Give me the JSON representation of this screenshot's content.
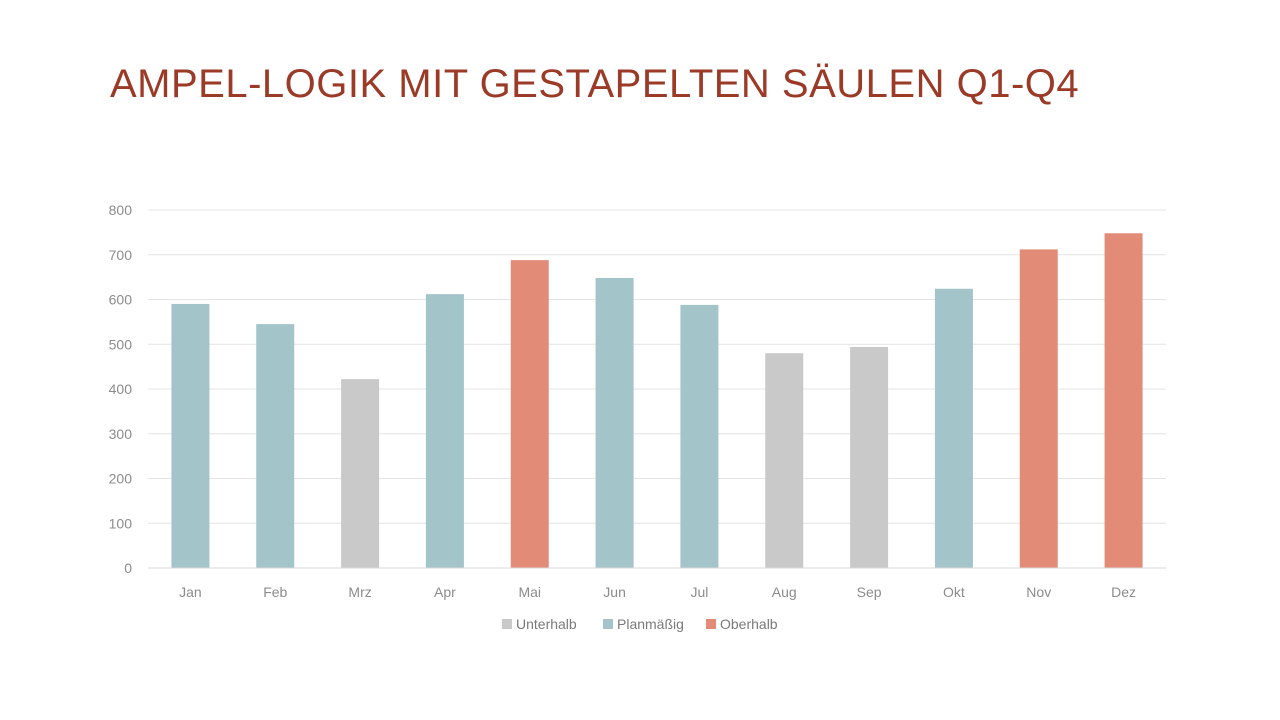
{
  "title": "AMPEL-LOGIK MIT GESTAPELTEN SÄULEN Q1-Q4",
  "chart_data": {
    "type": "bar",
    "stacked": true,
    "categories": [
      "Jan",
      "Feb",
      "Mrz",
      "Apr",
      "Mai",
      "Jun",
      "Jul",
      "Aug",
      "Sep",
      "Okt",
      "Nov",
      "Dez"
    ],
    "series": [
      {
        "name": "Unterhalb",
        "color": "#c9c9c9",
        "values": [
          0,
          0,
          422,
          0,
          0,
          0,
          0,
          480,
          494,
          0,
          0,
          0
        ]
      },
      {
        "name": "Planmäßig",
        "color": "#a3c4c8",
        "values": [
          590,
          545,
          0,
          612,
          0,
          648,
          588,
          0,
          0,
          624,
          0,
          0
        ]
      },
      {
        "name": "Oberhalb",
        "color": "#e28c78",
        "values": [
          0,
          0,
          0,
          0,
          688,
          0,
          0,
          0,
          0,
          0,
          712,
          748
        ]
      }
    ],
    "ylim": [
      0,
      800
    ],
    "yticks": [
      "0",
      "100",
      "200",
      "300",
      "400",
      "500",
      "600",
      "700",
      "800"
    ],
    "grid": true,
    "legend_position": "bottom"
  }
}
